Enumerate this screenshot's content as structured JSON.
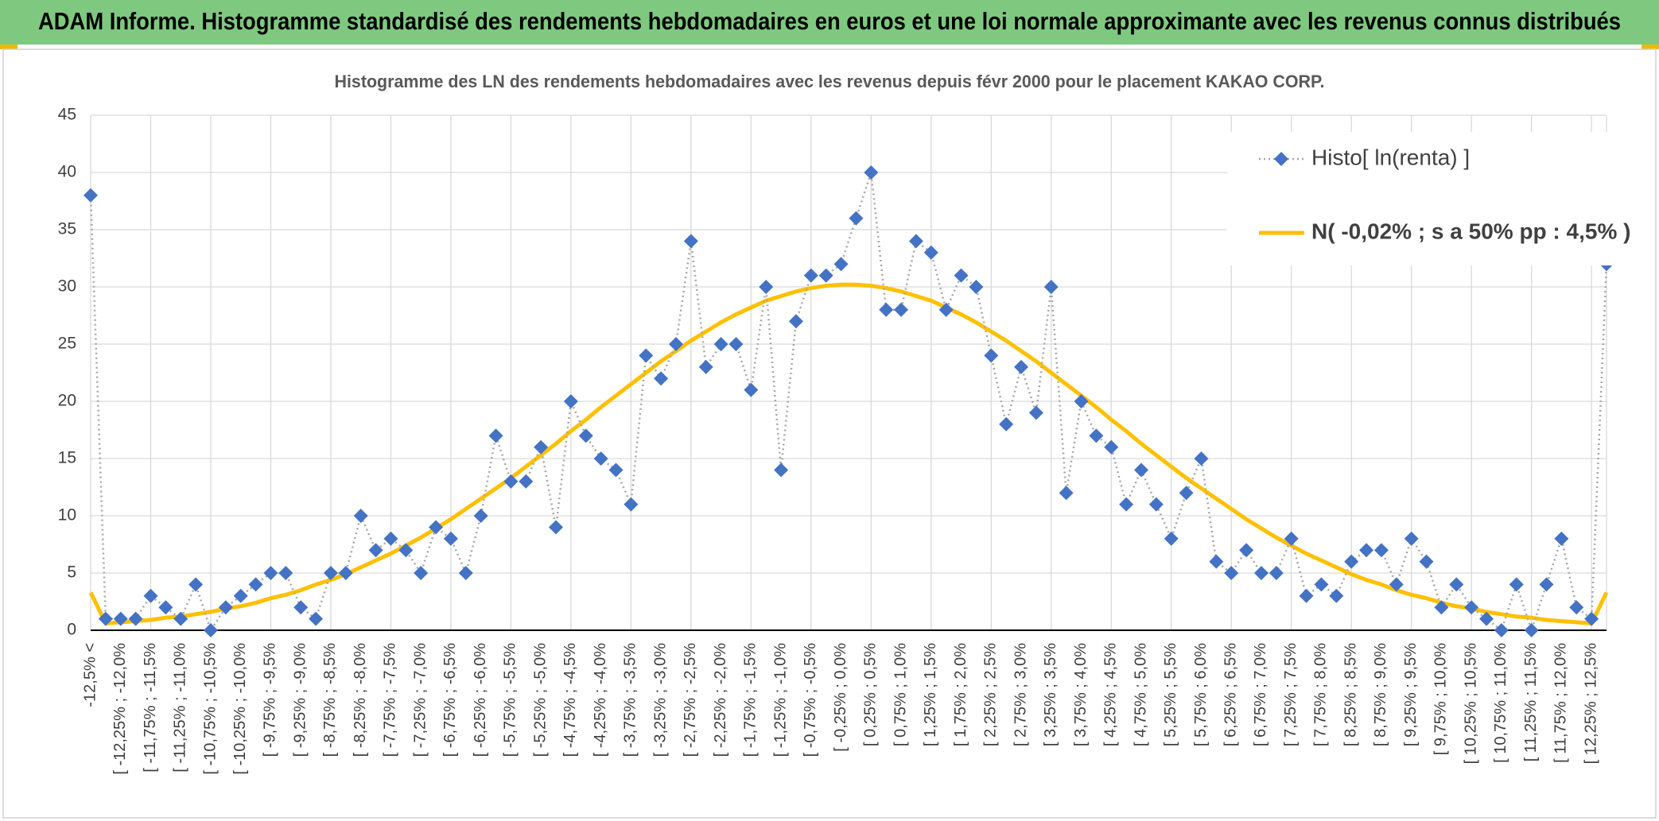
{
  "header": {
    "title": "ADAM Informe. Histogramme standardisé des rendements hebdomadaires en euros et une loi normale approximante avec les revenus connus distribués"
  },
  "chart_data": {
    "type": "line",
    "title": "Histogramme des LN des rendements hebdomadaires avec les revenus depuis févr 2000 pour le placement KAKAO CORP.",
    "categories": [
      "-12,5% <",
      null,
      "[ -12,25% ; -12,0%",
      null,
      "[ -11,75% ; -11,5%",
      null,
      "[ -11,25% ; -11,0%",
      null,
      "[ -10,75% ; -10,5%",
      null,
      "[ -10,25% ; -10,0%",
      null,
      "[ -9,75% ; -9,5%",
      null,
      "[ -9,25% ; -9,0%",
      null,
      "[ -8,75% ; -8,5%",
      null,
      "[ -8,25% ; -8,0%",
      null,
      "[ -7,75% ; -7,5%",
      null,
      "[ -7,25% ; -7,0%",
      null,
      "[ -6,75% ; -6,5%",
      null,
      "[ -6,25% ; -6,0%",
      null,
      "[ -5,75% ; -5,5%",
      null,
      "[ -5,25% ; -5,0%",
      null,
      "[ -4,75% ; -4,5%",
      null,
      "[ -4,25% ; -4,0%",
      null,
      "[ -3,75% ; -3,5%",
      null,
      "[ -3,25% ; -3,0%",
      null,
      "[ -2,75% ; -2,5%",
      null,
      "[ -2,25% ; -2,0%",
      null,
      "[ -1,75% ; -1,5%",
      null,
      "[ -1,25% ; -1,0%",
      null,
      "[ -0,75% ; -0,5%",
      null,
      "[ -0,25% ; 0,0%",
      null,
      "[ 0,25% ; 0,5%",
      null,
      "[ 0,75% ; 1,0%",
      null,
      "[ 1,25% ; 1,5%",
      null,
      "[ 1,75% ; 2,0%",
      null,
      "[ 2,25% ; 2,5%",
      null,
      "[ 2,75% ; 3,0%",
      null,
      "[ 3,25% ; 3,5%",
      null,
      "[ 3,75% ; 4,0%",
      null,
      "[ 4,25% ; 4,5%",
      null,
      "[ 4,75% ; 5,0%",
      null,
      "[ 5,25% ; 5,5%",
      null,
      "[ 5,75% ; 6,0%",
      null,
      "[ 6,25% ; 6,5%",
      null,
      "[ 6,75% ; 7,0%",
      null,
      "[ 7,25% ; 7,5%",
      null,
      "[ 7,75% ; 8,0%",
      null,
      "[ 8,25% ; 8,5%",
      null,
      "[ 8,75% ; 9,0%",
      null,
      "[ 9,25% ; 9,5%",
      null,
      "[ 9,75% ; 10,0%",
      null,
      "[ 10,25% ; 10,5%",
      null,
      "[ 10,75% ; 11,0%",
      null,
      "[ 11,25% ; 11,5%",
      null,
      "[ 11,75% ; 12,0%",
      null,
      "[ 12,25% ; 12,5%",
      null
    ],
    "series": [
      {
        "name": "Histo[ ln(renta) ]",
        "color": "#4472c4",
        "line_color": "#a6a6a6",
        "marker": "diamond",
        "values": [
          38,
          1,
          1,
          1,
          3,
          2,
          1,
          4,
          0,
          2,
          3,
          4,
          5,
          5,
          2,
          1,
          5,
          5,
          10,
          7,
          8,
          7,
          5,
          9,
          8,
          5,
          10,
          17,
          13,
          13,
          16,
          9,
          20,
          17,
          15,
          14,
          11,
          24,
          22,
          25,
          34,
          23,
          25,
          25,
          21,
          30,
          14,
          27,
          31,
          31,
          32,
          36,
          40,
          28,
          28,
          34,
          33,
          28,
          31,
          30,
          24,
          18,
          23,
          19,
          30,
          12,
          20,
          17,
          16,
          11,
          14,
          11,
          8,
          12,
          15,
          6,
          5,
          7,
          5,
          5,
          8,
          3,
          4,
          3,
          6,
          7,
          7,
          4,
          8,
          6,
          2,
          4,
          2,
          1,
          0,
          4,
          0,
          4,
          8,
          2,
          1,
          32
        ]
      },
      {
        "name": "N( -0,02% ; s a 50% pp : 4,5% )",
        "color": "#ffc000",
        "values": [
          3.3,
          0.6,
          0.7,
          0.8,
          0.9,
          1.1,
          1.2,
          1.4,
          1.6,
          1.9,
          2.1,
          2.4,
          2.8,
          3.1,
          3.5,
          4.0,
          4.4,
          4.9,
          5.5,
          6.1,
          6.7,
          7.4,
          8.1,
          8.9,
          9.7,
          10.6,
          11.5,
          12.4,
          13.3,
          14.3,
          15.3,
          16.3,
          17.4,
          18.4,
          19.5,
          20.5,
          21.5,
          22.5,
          23.5,
          24.4,
          25.3,
          26.1,
          26.9,
          27.6,
          28.2,
          28.8,
          29.2,
          29.6,
          29.9,
          30.1,
          30.2,
          30.2,
          30.1,
          29.9,
          29.6,
          29.2,
          28.8,
          28.2,
          27.6,
          26.9,
          26.1,
          25.3,
          24.4,
          23.5,
          22.5,
          21.5,
          20.5,
          19.5,
          18.4,
          17.4,
          16.3,
          15.3,
          14.3,
          13.3,
          12.4,
          11.5,
          10.6,
          9.7,
          8.9,
          8.1,
          7.4,
          6.7,
          6.1,
          5.5,
          4.9,
          4.4,
          4.0,
          3.5,
          3.1,
          2.8,
          2.4,
          2.1,
          1.9,
          1.6,
          1.4,
          1.2,
          1.1,
          0.9,
          0.8,
          0.7,
          0.6,
          3.3
        ]
      }
    ],
    "ylim": [
      0,
      45
    ],
    "yticks": [
      0,
      5,
      10,
      15,
      20,
      25,
      30,
      35,
      40,
      45
    ],
    "grid": true,
    "legend": "upper right"
  }
}
